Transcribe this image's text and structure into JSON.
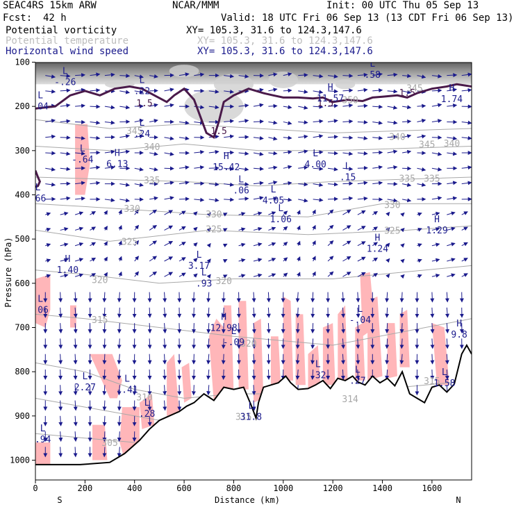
{
  "header": {
    "model": "SEAC4RS 15km ARW",
    "center": "NCAR/MMM",
    "init": "Init: 00 UTC Thu 05 Sep 13",
    "fcst_label": "Fcst:",
    "fcst_value": "42 h",
    "valid": "Valid: 18 UTC Fri 06 Sep 13 (13 CDT Fri 06 Sep 13)",
    "fields": [
      {
        "name": "Potential vorticity",
        "xy": "XY= 105.3, 31.6 to 124.3,147.6"
      },
      {
        "name": "Potential temperature",
        "xy": "XY= 105.3, 31.6 to 124.3,147.6"
      },
      {
        "name": "Horizontal wind speed",
        "xy": "XY= 105.3, 31.6 to 124.3,147.6"
      }
    ]
  },
  "chart_data": {
    "type": "cross-section",
    "xlabel": "Distance (km)",
    "ylabel": "Pressure (hPa)",
    "xlim": [
      0,
      1760
    ],
    "ylim": [
      1000,
      100
    ],
    "x_ticks": [
      "0",
      "200",
      "400",
      "600",
      "800",
      "1000",
      "1200",
      "1400",
      "1600"
    ],
    "y_ticks": [
      "100",
      "200",
      "300",
      "400",
      "500",
      "600",
      "700",
      "800",
      "900",
      "1000"
    ],
    "x_end_labels": {
      "left": "S",
      "right": "N"
    },
    "colors": {
      "terrain": "#000000",
      "pv": "#4a1a4a",
      "theta": "#a8a8a8",
      "wind": "#1a1a8c",
      "rh_fill": "#ffb6b9",
      "upper_shade": "#808080"
    },
    "terrain_profile": {
      "x": [
        0,
        180,
        300,
        360,
        420,
        460,
        500,
        540,
        580,
        610,
        640,
        680,
        720,
        760,
        800,
        840,
        870,
        890,
        900,
        920,
        950,
        980,
        1010,
        1030,
        1060,
        1100,
        1130,
        1160,
        1190,
        1220,
        1250,
        1280,
        1300,
        1330,
        1360,
        1390,
        1420,
        1450,
        1480,
        1510,
        1540,
        1570,
        1600,
        1630,
        1660,
        1690,
        1720,
        1740,
        1760
      ],
      "p": [
        1010,
        1010,
        1005,
        985,
        955,
        930,
        910,
        900,
        890,
        878,
        870,
        850,
        865,
        835,
        840,
        835,
        875,
        905,
        870,
        835,
        830,
        825,
        810,
        825,
        840,
        838,
        830,
        820,
        838,
        815,
        820,
        810,
        823,
        830,
        810,
        825,
        815,
        832,
        800,
        850,
        860,
        870,
        835,
        830,
        846,
        828,
        760,
        740,
        760
      ]
    },
    "pv_contour_label": "1.5",
    "pv_labels": [
      {
        "x": 440,
        "p": 192,
        "text": "1.5"
      },
      {
        "x": 740,
        "p": 255,
        "text": "1.5"
      },
      {
        "x": 1170,
        "p": 192,
        "text": "1.5"
      },
      {
        "x": 1500,
        "p": 168,
        "text": "1.5"
      }
    ],
    "theta_labels": [
      {
        "x": 400,
        "p": 255,
        "text": "345"
      },
      {
        "x": 470,
        "p": 291,
        "text": "340"
      },
      {
        "x": 470,
        "p": 366,
        "text": "335"
      },
      {
        "x": 390,
        "p": 431,
        "text": "330"
      },
      {
        "x": 380,
        "p": 505,
        "text": "325"
      },
      {
        "x": 260,
        "p": 592,
        "text": "320"
      },
      {
        "x": 260,
        "p": 682,
        "text": "315"
      },
      {
        "x": 720,
        "p": 443,
        "text": "330"
      },
      {
        "x": 720,
        "p": 477,
        "text": "325"
      },
      {
        "x": 760,
        "p": 594,
        "text": "320"
      },
      {
        "x": 1500,
        "p": 362,
        "text": "335"
      },
      {
        "x": 1600,
        "p": 362,
        "text": "335"
      },
      {
        "x": 1440,
        "p": 422,
        "text": "330"
      },
      {
        "x": 1440,
        "p": 480,
        "text": "325"
      },
      {
        "x": 1530,
        "p": 158,
        "text": "345"
      },
      {
        "x": 1460,
        "p": 268,
        "text": "340"
      },
      {
        "x": 1580,
        "p": 285,
        "text": "345"
      },
      {
        "x": 1680,
        "p": 283,
        "text": "340"
      },
      {
        "x": 1270,
        "p": 185,
        "text": "350"
      },
      {
        "x": 860,
        "p": 735,
        "text": "320"
      },
      {
        "x": 440,
        "p": 857,
        "text": "310"
      },
      {
        "x": 300,
        "p": 960,
        "text": "305"
      },
      {
        "x": 840,
        "p": 901,
        "text": "315"
      },
      {
        "x": 1270,
        "p": 861,
        "text": "314"
      },
      {
        "x": 1600,
        "p": 820,
        "text": "315"
      }
    ],
    "wind_extrema": [
      {
        "type": "L",
        "x": 120,
        "p": 130,
        "value": "-.26"
      },
      {
        "type": "L",
        "x": 430,
        "p": 150,
        "value": ".22"
      },
      {
        "type": "L",
        "x": 430,
        "p": 247,
        "value": ".24"
      },
      {
        "type": "L",
        "x": 190,
        "p": 305,
        "value": "-.64"
      },
      {
        "type": "H",
        "x": 330,
        "p": 315,
        "value": "6.13"
      },
      {
        "type": "H",
        "x": 770,
        "p": 322,
        "value": "15.42"
      },
      {
        "type": "L",
        "x": 830,
        "p": 375,
        "value": ".06"
      },
      {
        "type": "L",
        "x": 960,
        "p": 398,
        "value": "4.05"
      },
      {
        "type": "L",
        "x": 990,
        "p": 440,
        "value": "1.06"
      },
      {
        "type": "L",
        "x": 1130,
        "p": 316,
        "value": "4.00"
      },
      {
        "type": "L",
        "x": 1260,
        "p": 345,
        "value": ".15"
      },
      {
        "type": "H",
        "x": 1190,
        "p": 167,
        "value": "11.57"
      },
      {
        "type": "L",
        "x": 1360,
        "p": 113,
        "value": ".58"
      },
      {
        "type": "H",
        "x": 1680,
        "p": 168,
        "value": "1.74"
      },
      {
        "type": "H",
        "x": 130,
        "p": 555,
        "value": "1.40"
      },
      {
        "type": "L",
        "x": 660,
        "p": 545,
        "value": "3.17"
      },
      {
        "type": "L",
        "x": 680,
        "p": 585,
        "value": ".93"
      },
      {
        "type": "H",
        "x": 1380,
        "p": 507,
        "value": "1.24"
      },
      {
        "type": "H",
        "x": 1620,
        "p": 465,
        "value": "1.29"
      },
      {
        "type": "H",
        "x": 760,
        "p": 686,
        "value": "12.98"
      },
      {
        "type": "L",
        "x": 800,
        "p": 718,
        "value": "-.09"
      },
      {
        "type": "L",
        "x": 1310,
        "p": 668,
        "value": "-.04"
      },
      {
        "type": "L",
        "x": 1140,
        "p": 793,
        "value": ".32"
      },
      {
        "type": "L",
        "x": 1300,
        "p": 805,
        "value": ".27"
      },
      {
        "type": "H",
        "x": 1710,
        "p": 701,
        "value": "9.8"
      },
      {
        "type": "L",
        "x": 1650,
        "p": 811,
        "value": "1.58"
      },
      {
        "type": "L",
        "x": 200,
        "p": 820,
        "value": "2.27"
      },
      {
        "type": "L",
        "x": 370,
        "p": 826,
        "value": "-.41"
      },
      {
        "type": "L",
        "x": 450,
        "p": 880,
        "value": ".28"
      },
      {
        "type": "L",
        "x": 870,
        "p": 887,
        "value": "31.8"
      },
      {
        "type": "L",
        "x": 30,
        "p": 938,
        "value": ".94"
      },
      {
        "type": "L",
        "x": 10,
        "p": 393,
        "value": ".66"
      },
      {
        "type": "L",
        "x": 20,
        "p": 185,
        "value": ".04"
      },
      {
        "type": "L",
        "x": 20,
        "p": 645,
        "value": ".06"
      }
    ]
  }
}
